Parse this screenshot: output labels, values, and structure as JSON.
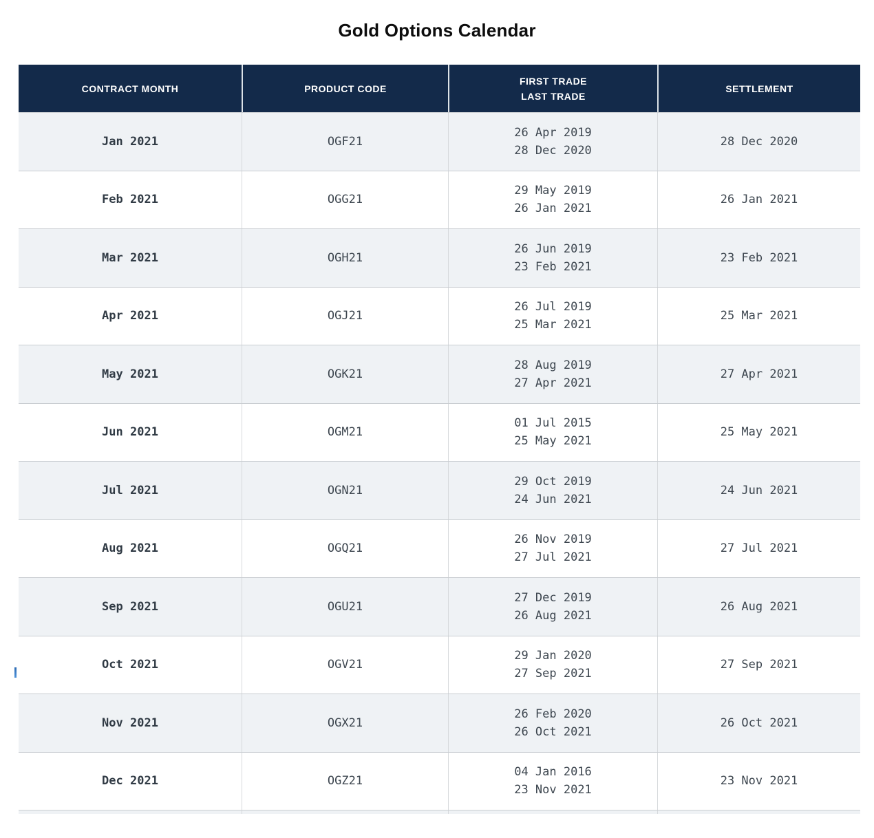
{
  "page": {
    "title": "Gold Options Calendar"
  },
  "table": {
    "columns": [
      {
        "id": "contract_month",
        "label": "CONTRACT MONTH"
      },
      {
        "id": "product_code",
        "label": "PRODUCT CODE"
      },
      {
        "id": "first_last_trade",
        "label_line1": "FIRST TRADE",
        "label_line2": "LAST TRADE"
      },
      {
        "id": "settlement",
        "label": "SETTLEMENT"
      }
    ],
    "rows": [
      {
        "contract_month": "Jan 2021",
        "product_code": "OGF21",
        "first_trade": "26 Apr 2019",
        "last_trade": "28 Dec 2020",
        "settlement": "28 Dec 2020"
      },
      {
        "contract_month": "Feb 2021",
        "product_code": "OGG21",
        "first_trade": "29 May 2019",
        "last_trade": "26 Jan 2021",
        "settlement": "26 Jan 2021"
      },
      {
        "contract_month": "Mar 2021",
        "product_code": "OGH21",
        "first_trade": "26 Jun 2019",
        "last_trade": "23 Feb 2021",
        "settlement": "23 Feb 2021"
      },
      {
        "contract_month": "Apr 2021",
        "product_code": "OGJ21",
        "first_trade": "26 Jul 2019",
        "last_trade": "25 Mar 2021",
        "settlement": "25 Mar 2021"
      },
      {
        "contract_month": "May 2021",
        "product_code": "OGK21",
        "first_trade": "28 Aug 2019",
        "last_trade": "27 Apr 2021",
        "settlement": "27 Apr 2021"
      },
      {
        "contract_month": "Jun 2021",
        "product_code": "OGM21",
        "first_trade": "01 Jul 2015",
        "last_trade": "25 May 2021",
        "settlement": "25 May 2021"
      },
      {
        "contract_month": "Jul 2021",
        "product_code": "OGN21",
        "first_trade": "29 Oct 2019",
        "last_trade": "24 Jun 2021",
        "settlement": "24 Jun 2021"
      },
      {
        "contract_month": "Aug 2021",
        "product_code": "OGQ21",
        "first_trade": "26 Nov 2019",
        "last_trade": "27 Jul 2021",
        "settlement": "27 Jul 2021"
      },
      {
        "contract_month": "Sep 2021",
        "product_code": "OGU21",
        "first_trade": "27 Dec 2019",
        "last_trade": "26 Aug 2021",
        "settlement": "26 Aug 2021"
      },
      {
        "contract_month": "Oct 2021",
        "product_code": "OGV21",
        "first_trade": "29 Jan 2020",
        "last_trade": "27 Sep 2021",
        "settlement": "27 Sep 2021"
      },
      {
        "contract_month": "Nov 2021",
        "product_code": "OGX21",
        "first_trade": "26 Feb 2020",
        "last_trade": "26 Oct 2021",
        "settlement": "26 Oct 2021"
      },
      {
        "contract_month": "Dec 2021",
        "product_code": "OGZ21",
        "first_trade": "04 Jan 2016",
        "last_trade": "23 Nov 2021",
        "settlement": "23 Nov 2021"
      }
    ]
  },
  "colors": {
    "header_bg": "#132a4a",
    "header_text": "#ffffff",
    "row_alt_bg": "#eff2f5",
    "row_bg": "#ffffff",
    "body_text": "#3d464f",
    "border_horizontal": "#c9cdd1",
    "border_vertical": "#d6d9dc",
    "caret": "#3b78c8"
  }
}
